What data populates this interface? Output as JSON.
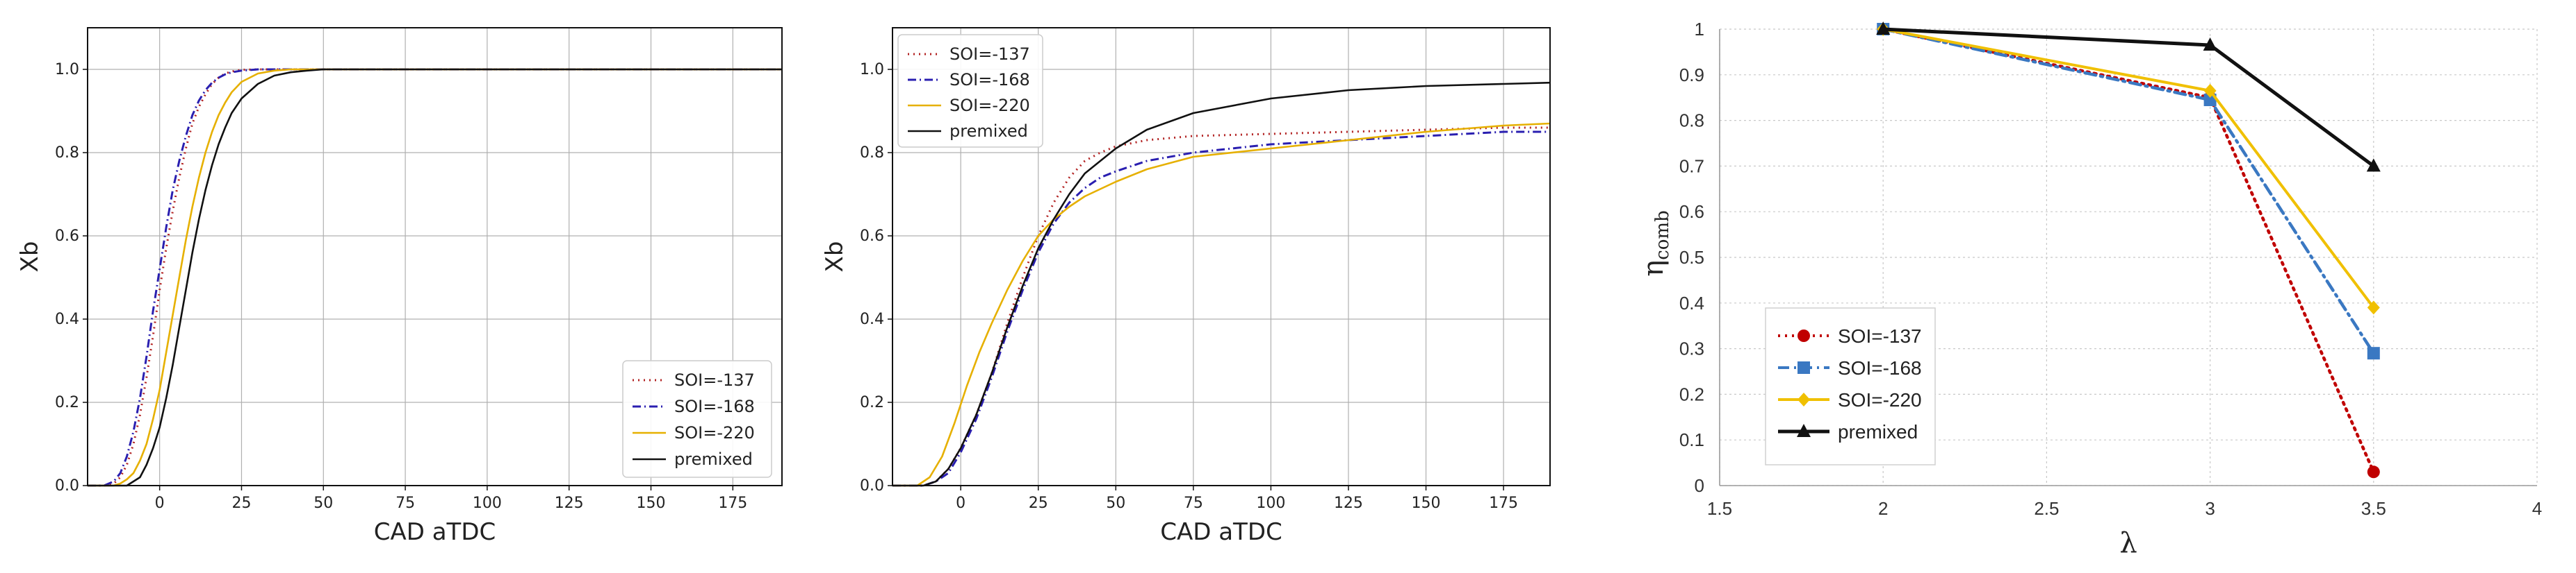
{
  "chart_data": [
    {
      "type": "line",
      "xlabel": "CAD aTDC",
      "ylabel": "Xb",
      "xlim": [
        -22,
        190
      ],
      "ylim": [
        0,
        1.1
      ],
      "xticks": [
        0,
        25,
        50,
        75,
        100,
        125,
        150,
        175
      ],
      "yticks": [
        0.0,
        0.2,
        0.4,
        0.6,
        0.8,
        1.0
      ],
      "grid": true,
      "legend_position": "bottom-right",
      "series": [
        {
          "name": "SOI=-137",
          "color": "#b22222",
          "style": "dotted",
          "x": [
            -22,
            -17,
            -14,
            -12,
            -10,
            -8,
            -6,
            -4,
            -2,
            0,
            2,
            4,
            6,
            8,
            10,
            12,
            14,
            16,
            18,
            20,
            22,
            25,
            30,
            35,
            40,
            50,
            60,
            80,
            190
          ],
          "y": [
            0,
            0,
            0.005,
            0.02,
            0.05,
            0.1,
            0.17,
            0.26,
            0.36,
            0.47,
            0.57,
            0.66,
            0.74,
            0.81,
            0.87,
            0.91,
            0.94,
            0.965,
            0.98,
            0.99,
            0.995,
            0.999,
            1,
            1,
            1,
            1,
            1,
            1,
            1
          ]
        },
        {
          "name": "SOI=-168",
          "color": "#2a1fb0",
          "style": "dashdot",
          "x": [
            -22,
            -17,
            -14,
            -12,
            -10,
            -8,
            -6,
            -4,
            -2,
            0,
            2,
            4,
            6,
            8,
            10,
            12,
            14,
            16,
            18,
            20,
            22,
            25,
            30,
            35,
            40,
            50,
            60,
            80,
            190
          ],
          "y": [
            0,
            0,
            0.01,
            0.03,
            0.07,
            0.13,
            0.21,
            0.31,
            0.42,
            0.52,
            0.62,
            0.71,
            0.78,
            0.84,
            0.89,
            0.925,
            0.95,
            0.968,
            0.98,
            0.988,
            0.993,
            0.997,
            1,
            1,
            1,
            1,
            1,
            1,
            1
          ]
        },
        {
          "name": "SOI=-220",
          "color": "#e6b000",
          "style": "solid",
          "x": [
            -22,
            -17,
            -14,
            -12,
            -10,
            -8,
            -6,
            -4,
            -2,
            0,
            2,
            4,
            6,
            8,
            10,
            12,
            14,
            16,
            18,
            20,
            22,
            25,
            30,
            35,
            40,
            50,
            60,
            80,
            190
          ],
          "y": [
            0,
            0,
            0,
            0.005,
            0.015,
            0.03,
            0.06,
            0.1,
            0.16,
            0.23,
            0.32,
            0.41,
            0.5,
            0.59,
            0.67,
            0.74,
            0.8,
            0.85,
            0.89,
            0.92,
            0.945,
            0.97,
            0.99,
            0.997,
            1,
            1,
            1,
            1,
            1
          ]
        },
        {
          "name": "premixed",
          "color": "#111111",
          "style": "solid",
          "x": [
            -22,
            -14,
            -10,
            -8,
            -6,
            -4,
            -2,
            0,
            2,
            4,
            6,
            8,
            10,
            12,
            14,
            16,
            18,
            20,
            22,
            25,
            30,
            35,
            40,
            45,
            50,
            60,
            80,
            190
          ],
          "y": [
            0,
            0,
            0,
            0.01,
            0.02,
            0.05,
            0.09,
            0.14,
            0.21,
            0.29,
            0.38,
            0.47,
            0.56,
            0.64,
            0.71,
            0.77,
            0.82,
            0.86,
            0.895,
            0.93,
            0.965,
            0.985,
            0.993,
            0.997,
            1,
            1,
            1,
            1
          ]
        }
      ]
    },
    {
      "type": "line",
      "xlabel": "CAD aTDC",
      "ylabel": "Xb",
      "xlim": [
        -22,
        190
      ],
      "ylim": [
        0,
        1.1
      ],
      "xticks": [
        0,
        25,
        50,
        75,
        100,
        125,
        150,
        175
      ],
      "yticks": [
        0.0,
        0.2,
        0.4,
        0.6,
        0.8,
        1.0
      ],
      "grid": true,
      "legend_position": "top-left",
      "series": [
        {
          "name": "SOI=-137",
          "color": "#b22222",
          "style": "dotted",
          "x": [
            -22,
            -12,
            -8,
            -4,
            0,
            5,
            10,
            15,
            20,
            25,
            30,
            35,
            40,
            45,
            50,
            60,
            75,
            100,
            125,
            150,
            175,
            190
          ],
          "y": [
            0,
            0,
            0.01,
            0.04,
            0.09,
            0.17,
            0.27,
            0.39,
            0.5,
            0.6,
            0.68,
            0.74,
            0.78,
            0.8,
            0.815,
            0.83,
            0.84,
            0.845,
            0.85,
            0.855,
            0.86,
            0.86
          ]
        },
        {
          "name": "SOI=-168",
          "color": "#2a1fb0",
          "style": "dashdot",
          "x": [
            -22,
            -12,
            -8,
            -4,
            0,
            5,
            10,
            15,
            20,
            25,
            30,
            35,
            40,
            45,
            50,
            60,
            75,
            100,
            125,
            150,
            175,
            190
          ],
          "y": [
            0,
            0,
            0.01,
            0.03,
            0.08,
            0.16,
            0.26,
            0.37,
            0.47,
            0.56,
            0.63,
            0.68,
            0.715,
            0.74,
            0.755,
            0.78,
            0.8,
            0.82,
            0.83,
            0.84,
            0.85,
            0.85
          ]
        },
        {
          "name": "SOI=-220",
          "color": "#e6b000",
          "style": "solid",
          "x": [
            -22,
            -14,
            -10,
            -6,
            -2,
            2,
            6,
            10,
            15,
            20,
            25,
            30,
            35,
            40,
            50,
            60,
            75,
            100,
            125,
            150,
            175,
            190
          ],
          "y": [
            0,
            0,
            0.02,
            0.07,
            0.15,
            0.24,
            0.32,
            0.39,
            0.47,
            0.54,
            0.6,
            0.64,
            0.67,
            0.695,
            0.73,
            0.76,
            0.79,
            0.81,
            0.83,
            0.85,
            0.865,
            0.87
          ]
        },
        {
          "name": "premixed",
          "color": "#111111",
          "style": "solid",
          "x": [
            -22,
            -12,
            -8,
            -4,
            0,
            5,
            10,
            15,
            20,
            25,
            30,
            35,
            40,
            50,
            60,
            75,
            100,
            125,
            150,
            175,
            190
          ],
          "y": [
            0,
            0,
            0.01,
            0.04,
            0.09,
            0.17,
            0.27,
            0.38,
            0.48,
            0.57,
            0.64,
            0.7,
            0.75,
            0.81,
            0.855,
            0.895,
            0.93,
            0.95,
            0.96,
            0.965,
            0.968
          ]
        }
      ]
    },
    {
      "type": "line",
      "xlabel": "λ",
      "ylabel": "η",
      "ylabel_sub": "comb",
      "xlim": [
        1.5,
        4
      ],
      "ylim": [
        0,
        1
      ],
      "xticks": [
        "1.5",
        "2",
        "2.5",
        "3",
        "3.5",
        "4"
      ],
      "yticks": [
        "0",
        "0.1",
        "0.2",
        "0.3",
        "0.4",
        "0.5",
        "0.6",
        "0.7",
        "0.8",
        "0.9",
        "1"
      ],
      "grid": true,
      "legend_position": "bottom-left",
      "series": [
        {
          "name": "SOI=-137",
          "color": "#c00000",
          "style": "dotted",
          "marker": "circle",
          "x": [
            2,
            3,
            3.5
          ],
          "y": [
            1.0,
            0.85,
            0.03
          ]
        },
        {
          "name": "SOI=-168",
          "color": "#3a78c2",
          "style": "dashdot",
          "marker": "square",
          "x": [
            2,
            3,
            3.5
          ],
          "y": [
            1.0,
            0.845,
            0.29
          ]
        },
        {
          "name": "SOI=-220",
          "color": "#f0c000",
          "style": "solid",
          "marker": "diamond",
          "x": [
            2,
            3,
            3.5
          ],
          "y": [
            1.0,
            0.865,
            0.39
          ]
        },
        {
          "name": "premixed",
          "color": "#111111",
          "style": "solid",
          "marker": "triangle",
          "x": [
            2,
            3,
            3.5
          ],
          "y": [
            1.0,
            0.965,
            0.7
          ]
        }
      ]
    }
  ]
}
